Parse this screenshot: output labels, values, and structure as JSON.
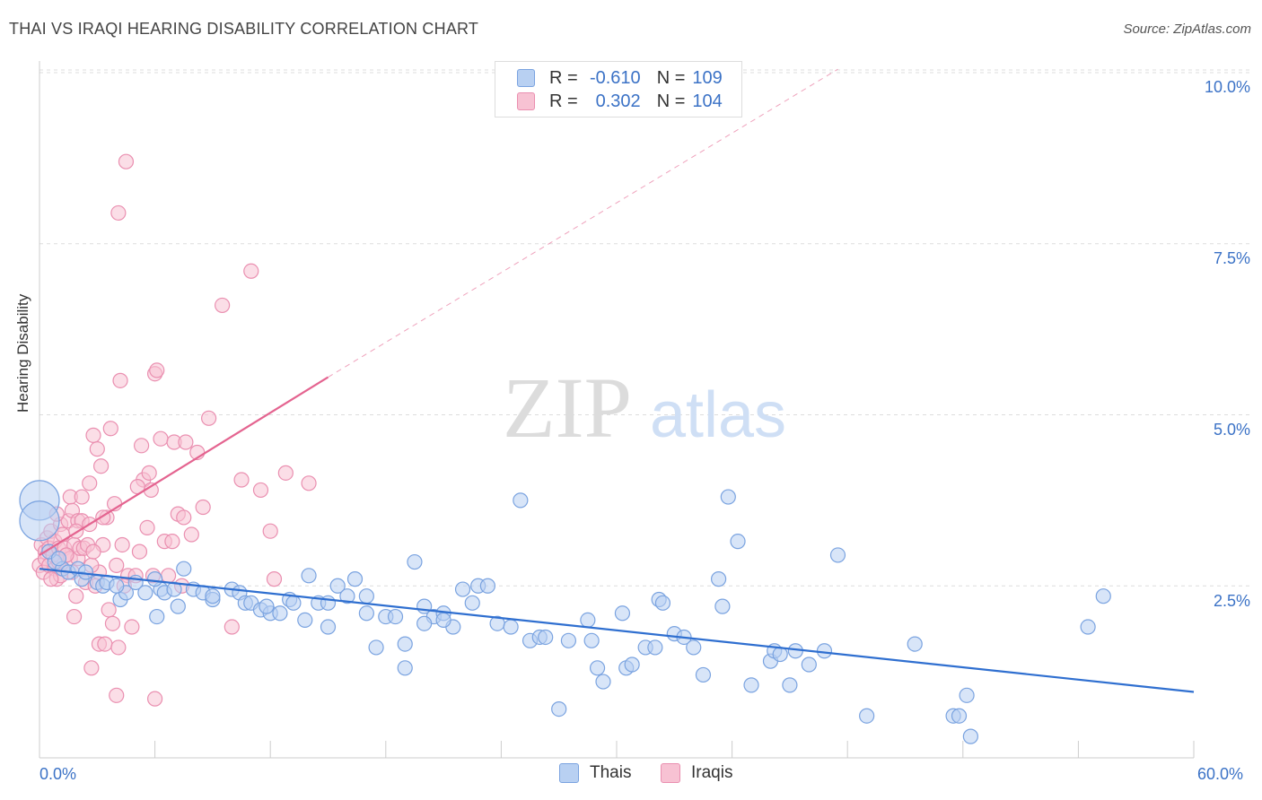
{
  "header": {
    "title": "THAI VS IRAQI HEARING DISABILITY CORRELATION CHART",
    "source": "Source: ZipAtlas.com"
  },
  "watermark": {
    "zip": "ZIP",
    "atlas": "atlas"
  },
  "legend_top": {
    "rows": [
      {
        "r_label": "R =",
        "r_value": "-0.610",
        "n_label": "N =",
        "n_value": "109"
      },
      {
        "r_label": "R =",
        "r_value": "0.302",
        "n_label": "N =",
        "n_value": "104"
      }
    ]
  },
  "legend_bottom": {
    "items": [
      "Thais",
      "Iraqis"
    ]
  },
  "colors": {
    "thais_fill": "#b8d0f2",
    "thais_stroke": "#7aa3e0",
    "thais_line": "#2f6fd0",
    "iraqis_fill": "#f7c2d3",
    "iraqis_stroke": "#ea8fb0",
    "iraqis_line": "#e46490",
    "tick_label": "#3b72c6",
    "grid": "#dddddd"
  },
  "chart_data": {
    "type": "scatter",
    "title": "THAI VS IRAQI HEARING DISABILITY CORRELATION CHART",
    "xlabel": "",
    "ylabel": "Hearing Disability",
    "xlim": [
      0,
      60
    ],
    "ylim": [
      0,
      10.5
    ],
    "x_tick_labels": [
      {
        "value": 0,
        "label": "0.0%"
      },
      {
        "value": 60,
        "label": "60.0%"
      }
    ],
    "y_tick_labels": [
      {
        "value": 2.5,
        "label": "2.5%"
      },
      {
        "value": 5.0,
        "label": "5.0%"
      },
      {
        "value": 7.5,
        "label": "7.5%"
      },
      {
        "value": 10.0,
        "label": "10.0%"
      }
    ],
    "grid": true,
    "legend_placement": "bottom",
    "series": [
      {
        "name": "Thais",
        "r": -0.61,
        "n": 109,
        "trend": {
          "x": [
            0,
            60
          ],
          "y": [
            2.75,
            0.95
          ]
        },
        "points": [
          [
            0.0,
            3.75
          ],
          [
            0.0,
            3.45
          ],
          [
            0.8,
            2.85
          ],
          [
            1.2,
            2.75
          ],
          [
            1.5,
            2.7
          ],
          [
            2.0,
            2.75
          ],
          [
            2.2,
            2.6
          ],
          [
            3.0,
            2.55
          ],
          [
            3.3,
            2.5
          ],
          [
            3.5,
            2.55
          ],
          [
            4.2,
            2.3
          ],
          [
            4.5,
            2.4
          ],
          [
            5.0,
            2.55
          ],
          [
            5.5,
            2.4
          ],
          [
            6.1,
            2.05
          ],
          [
            6.3,
            2.45
          ],
          [
            6.5,
            2.4
          ],
          [
            7.0,
            2.45
          ],
          [
            7.2,
            2.2
          ],
          [
            7.5,
            2.75
          ],
          [
            8.0,
            2.45
          ],
          [
            8.5,
            2.4
          ],
          [
            9.0,
            2.3
          ],
          [
            10.0,
            2.45
          ],
          [
            10.4,
            2.4
          ],
          [
            10.7,
            2.25
          ],
          [
            11.0,
            2.25
          ],
          [
            11.5,
            2.15
          ],
          [
            12.0,
            2.1
          ],
          [
            13.0,
            2.3
          ],
          [
            13.2,
            2.25
          ],
          [
            13.8,
            2.0
          ],
          [
            14.0,
            2.65
          ],
          [
            14.5,
            2.25
          ],
          [
            15.0,
            1.9
          ],
          [
            15.5,
            2.5
          ],
          [
            16.0,
            2.35
          ],
          [
            16.4,
            2.6
          ],
          [
            17.0,
            2.1
          ],
          [
            17.5,
            1.6
          ],
          [
            18.0,
            2.05
          ],
          [
            18.5,
            2.05
          ],
          [
            19.0,
            1.65
          ],
          [
            19.0,
            1.3
          ],
          [
            19.5,
            2.85
          ],
          [
            20.0,
            2.2
          ],
          [
            20.5,
            2.05
          ],
          [
            21.0,
            2.1
          ],
          [
            21.5,
            1.9
          ],
          [
            22.0,
            2.45
          ],
          [
            22.5,
            2.25
          ],
          [
            22.8,
            2.5
          ],
          [
            23.3,
            2.5
          ],
          [
            23.8,
            1.95
          ],
          [
            24.5,
            1.9
          ],
          [
            25.0,
            3.75
          ],
          [
            25.5,
            1.7
          ],
          [
            26.0,
            1.75
          ],
          [
            26.3,
            1.75
          ],
          [
            27.0,
            0.7
          ],
          [
            27.5,
            1.7
          ],
          [
            28.5,
            2.0
          ],
          [
            28.7,
            1.7
          ],
          [
            29.0,
            1.3
          ],
          [
            29.3,
            1.1
          ],
          [
            30.3,
            2.1
          ],
          [
            30.5,
            1.3
          ],
          [
            30.8,
            1.35
          ],
          [
            31.5,
            1.6
          ],
          [
            32.0,
            1.6
          ],
          [
            32.2,
            2.3
          ],
          [
            32.4,
            2.25
          ],
          [
            33.0,
            1.8
          ],
          [
            33.5,
            1.75
          ],
          [
            34.0,
            1.6
          ],
          [
            34.5,
            1.2
          ],
          [
            35.3,
            2.6
          ],
          [
            35.5,
            2.2
          ],
          [
            35.8,
            3.8
          ],
          [
            36.3,
            3.15
          ],
          [
            37.0,
            1.05
          ],
          [
            38.0,
            1.4
          ],
          [
            38.2,
            1.55
          ],
          [
            38.5,
            1.5
          ],
          [
            39.0,
            1.05
          ],
          [
            39.3,
            1.55
          ],
          [
            40.0,
            1.35
          ],
          [
            40.8,
            1.55
          ],
          [
            41.5,
            2.95
          ],
          [
            43.0,
            0.6
          ],
          [
            45.5,
            1.65
          ],
          [
            47.5,
            0.6
          ],
          [
            47.8,
            0.6
          ],
          [
            48.2,
            0.9
          ],
          [
            48.4,
            0.3
          ],
          [
            54.5,
            1.9
          ],
          [
            55.3,
            2.35
          ],
          [
            0.5,
            3.0
          ],
          [
            1.0,
            2.9
          ],
          [
            2.4,
            2.7
          ],
          [
            4.0,
            2.5
          ],
          [
            6.0,
            2.6
          ],
          [
            9.0,
            2.35
          ],
          [
            11.8,
            2.2
          ],
          [
            12.5,
            2.1
          ],
          [
            15.0,
            2.25
          ],
          [
            17.0,
            2.35
          ],
          [
            20.0,
            1.95
          ],
          [
            21.0,
            2.0
          ]
        ]
      },
      {
        "name": "Iraqis",
        "r": 0.302,
        "n": 104,
        "trend": {
          "x": [
            0,
            15.0
          ],
          "y": [
            2.95,
            5.55
          ]
        },
        "trend_extension": {
          "x": [
            15.0,
            41.5
          ],
          "y": [
            5.55,
            10.05
          ]
        },
        "points": [
          [
            0.0,
            2.8
          ],
          [
            0.1,
            3.1
          ],
          [
            0.2,
            2.7
          ],
          [
            0.3,
            3.0
          ],
          [
            0.3,
            2.9
          ],
          [
            0.4,
            3.2
          ],
          [
            0.5,
            2.8
          ],
          [
            0.5,
            3.05
          ],
          [
            0.6,
            3.3
          ],
          [
            0.7,
            2.95
          ],
          [
            0.8,
            2.75
          ],
          [
            0.8,
            3.15
          ],
          [
            0.9,
            2.6
          ],
          [
            1.0,
            3.05
          ],
          [
            1.0,
            2.85
          ],
          [
            1.1,
            3.4
          ],
          [
            1.2,
            2.75
          ],
          [
            1.2,
            3.25
          ],
          [
            1.3,
            3.05
          ],
          [
            1.4,
            2.95
          ],
          [
            1.5,
            3.45
          ],
          [
            1.6,
            2.9
          ],
          [
            1.6,
            3.8
          ],
          [
            1.7,
            3.6
          ],
          [
            1.8,
            3.1
          ],
          [
            1.8,
            2.05
          ],
          [
            1.9,
            2.35
          ],
          [
            2.0,
            3.45
          ],
          [
            2.0,
            2.9
          ],
          [
            2.1,
            3.05
          ],
          [
            2.2,
            3.45
          ],
          [
            2.3,
            3.05
          ],
          [
            2.4,
            2.55
          ],
          [
            2.5,
            3.1
          ],
          [
            2.6,
            3.4
          ],
          [
            2.6,
            4.0
          ],
          [
            2.7,
            1.3
          ],
          [
            2.8,
            4.7
          ],
          [
            2.9,
            2.5
          ],
          [
            3.0,
            4.5
          ],
          [
            3.1,
            1.65
          ],
          [
            3.1,
            2.7
          ],
          [
            3.2,
            4.25
          ],
          [
            3.3,
            3.1
          ],
          [
            3.4,
            1.65
          ],
          [
            3.5,
            3.5
          ],
          [
            3.6,
            2.15
          ],
          [
            3.7,
            4.8
          ],
          [
            3.8,
            1.95
          ],
          [
            3.9,
            3.7
          ],
          [
            4.0,
            2.8
          ],
          [
            4.0,
            0.9
          ],
          [
            4.1,
            7.95
          ],
          [
            4.1,
            1.6
          ],
          [
            4.2,
            5.5
          ],
          [
            4.3,
            3.1
          ],
          [
            4.5,
            8.7
          ],
          [
            4.6,
            2.65
          ],
          [
            4.8,
            1.9
          ],
          [
            5.0,
            2.65
          ],
          [
            5.2,
            3.0
          ],
          [
            5.3,
            4.55
          ],
          [
            5.4,
            4.05
          ],
          [
            5.6,
            3.35
          ],
          [
            5.7,
            4.15
          ],
          [
            5.8,
            3.9
          ],
          [
            5.9,
            2.65
          ],
          [
            6.0,
            5.6
          ],
          [
            6.0,
            0.85
          ],
          [
            6.1,
            5.65
          ],
          [
            6.3,
            4.65
          ],
          [
            6.5,
            3.15
          ],
          [
            6.7,
            2.65
          ],
          [
            6.9,
            3.15
          ],
          [
            7.0,
            4.6
          ],
          [
            7.2,
            3.55
          ],
          [
            7.4,
            2.5
          ],
          [
            7.5,
            3.5
          ],
          [
            7.6,
            4.6
          ],
          [
            7.9,
            3.25
          ],
          [
            8.2,
            4.45
          ],
          [
            8.5,
            3.65
          ],
          [
            8.8,
            4.95
          ],
          [
            9.5,
            6.6
          ],
          [
            10.0,
            1.9
          ],
          [
            10.5,
            4.05
          ],
          [
            11.0,
            7.1
          ],
          [
            11.5,
            3.9
          ],
          [
            12.0,
            3.3
          ],
          [
            12.2,
            2.6
          ],
          [
            12.8,
            4.15
          ],
          [
            14.0,
            4.0
          ],
          [
            2.2,
            3.8
          ],
          [
            1.4,
            2.95
          ],
          [
            0.9,
            3.55
          ],
          [
            1.7,
            2.7
          ],
          [
            3.3,
            3.5
          ],
          [
            5.1,
            3.95
          ],
          [
            2.7,
            2.8
          ],
          [
            1.1,
            2.65
          ],
          [
            0.6,
            2.6
          ],
          [
            1.9,
            3.3
          ],
          [
            2.8,
            3.0
          ],
          [
            4.4,
            2.5
          ]
        ]
      }
    ]
  }
}
